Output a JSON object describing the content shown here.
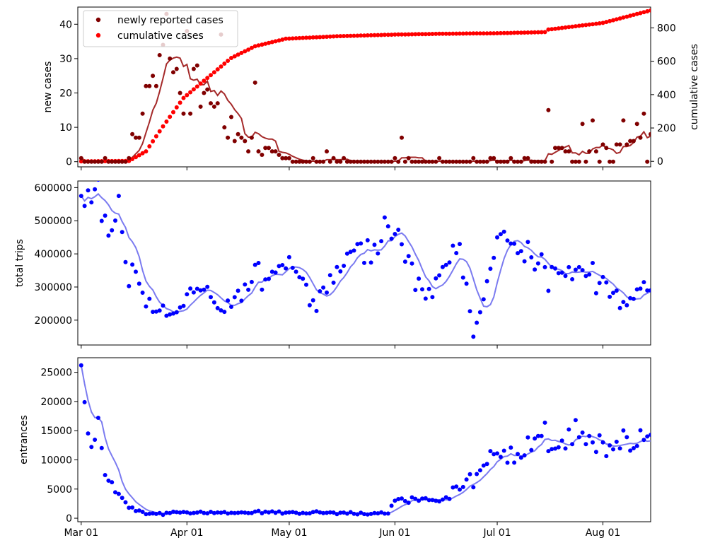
{
  "chart_data": [
    {
      "type": "scatter",
      "panel": "cases",
      "ylabel": "new cases",
      "y2label": "cumulative cases",
      "ylim": [
        -1.5,
        45
      ],
      "y2lim": [
        -33,
        925
      ],
      "yticks": [
        0,
        10,
        20,
        30,
        40
      ],
      "y2ticks": [
        0,
        200,
        400,
        600,
        800
      ],
      "legend_position": "top-left",
      "series": [
        {
          "name": "newly reported cases",
          "color": "#800000",
          "kind": "points"
        },
        {
          "name": "cumulative cases",
          "color": "#ff0000",
          "kind": "points"
        },
        {
          "name": "",
          "color": "#a52a2a",
          "kind": "rolling-line"
        }
      ],
      "new_cases_samples": [
        {
          "x": "2020-03-01",
          "y": 1
        },
        {
          "x": "2020-03-16",
          "y": 8
        },
        {
          "x": "2020-03-19",
          "y": 14
        },
        {
          "x": "2020-03-20",
          "y": 22
        },
        {
          "x": "2020-03-22",
          "y": 25
        },
        {
          "x": "2020-03-24",
          "y": 31
        },
        {
          "x": "2020-03-26",
          "y": 43
        },
        {
          "x": "2020-03-28",
          "y": 26
        },
        {
          "x": "2020-03-31",
          "y": 14
        },
        {
          "x": "2020-04-01",
          "y": 38
        },
        {
          "x": "2020-04-03",
          "y": 27
        },
        {
          "x": "2020-04-06",
          "y": 20
        },
        {
          "x": "2020-04-11",
          "y": 37
        },
        {
          "x": "2020-04-16",
          "y": 8
        },
        {
          "x": "2020-04-21",
          "y": 23
        },
        {
          "x": "2020-05-01",
          "y": 1
        },
        {
          "x": "2020-05-12",
          "y": 3
        },
        {
          "x": "2020-06-03",
          "y": 7
        },
        {
          "x": "2020-07-16",
          "y": 15
        },
        {
          "x": "2020-07-26",
          "y": 11
        },
        {
          "x": "2020-07-29",
          "y": 12
        },
        {
          "x": "2020-08-07",
          "y": 12
        },
        {
          "x": "2020-08-11",
          "y": 11
        },
        {
          "x": "2020-08-13",
          "y": 14
        },
        {
          "x": "2020-08-15",
          "y": 8
        }
      ],
      "cumulative_samples": [
        {
          "x": "2020-03-01",
          "y": 0
        },
        {
          "x": "2020-03-15",
          "y": 2
        },
        {
          "x": "2020-03-20",
          "y": 60
        },
        {
          "x": "2020-03-25",
          "y": 210
        },
        {
          "x": "2020-03-31",
          "y": 380
        },
        {
          "x": "2020-04-07",
          "y": 500
        },
        {
          "x": "2020-04-14",
          "y": 620
        },
        {
          "x": "2020-04-21",
          "y": 690
        },
        {
          "x": "2020-04-30",
          "y": 735
        },
        {
          "x": "2020-05-15",
          "y": 750
        },
        {
          "x": "2020-06-01",
          "y": 760
        },
        {
          "x": "2020-06-15",
          "y": 765
        },
        {
          "x": "2020-07-01",
          "y": 768
        },
        {
          "x": "2020-07-15",
          "y": 775
        },
        {
          "x": "2020-07-16",
          "y": 790
        },
        {
          "x": "2020-08-01",
          "y": 830
        },
        {
          "x": "2020-08-15",
          "y": 905
        }
      ]
    },
    {
      "type": "scatter",
      "panel": "trips",
      "ylabel": "total trips",
      "ylim": [
        125000,
        620000
      ],
      "yticks": [
        200000,
        300000,
        400000,
        500000,
        600000
      ],
      "series": [
        {
          "name": "",
          "color": "#0000ff",
          "kind": "points"
        },
        {
          "name": "",
          "color": "#7b7bf0",
          "kind": "rolling-line"
        }
      ],
      "samples": [
        {
          "x": "2020-03-01",
          "y": 575000
        },
        {
          "x": "2020-03-05",
          "y": 595000
        },
        {
          "x": "2020-03-09",
          "y": 455000
        },
        {
          "x": "2020-03-12",
          "y": 575000
        },
        {
          "x": "2020-03-14",
          "y": 375000
        },
        {
          "x": "2020-03-18",
          "y": 310000
        },
        {
          "x": "2020-03-22",
          "y": 225000
        },
        {
          "x": "2020-03-28",
          "y": 220000
        },
        {
          "x": "2020-04-05",
          "y": 290000
        },
        {
          "x": "2020-04-12",
          "y": 225000
        },
        {
          "x": "2020-04-20",
          "y": 315000
        },
        {
          "x": "2020-05-01",
          "y": 390000
        },
        {
          "x": "2020-05-08",
          "y": 260000
        },
        {
          "x": "2020-05-20",
          "y": 410000
        },
        {
          "x": "2020-06-01",
          "y": 460000
        },
        {
          "x": "2020-06-10",
          "y": 265000
        },
        {
          "x": "2020-06-20",
          "y": 430000
        },
        {
          "x": "2020-06-24",
          "y": 150000
        },
        {
          "x": "2020-07-01",
          "y": 450000
        },
        {
          "x": "2020-07-15",
          "y": 360000
        },
        {
          "x": "2020-08-01",
          "y": 330000
        },
        {
          "x": "2020-08-07",
          "y": 255000
        },
        {
          "x": "2020-08-15",
          "y": 290000
        }
      ]
    },
    {
      "type": "scatter",
      "panel": "entrances",
      "ylabel": "entrances",
      "ylim": [
        -600,
        27500
      ],
      "yticks": [
        0,
        5000,
        10000,
        15000,
        20000,
        25000
      ],
      "series": [
        {
          "name": "",
          "color": "#0000ff",
          "kind": "points"
        },
        {
          "name": "",
          "color": "#7b7bf0",
          "kind": "rolling-line"
        }
      ],
      "samples": [
        {
          "x": "2020-03-01",
          "y": 26200
        },
        {
          "x": "2020-03-04",
          "y": 12200
        },
        {
          "x": "2020-03-06",
          "y": 17200
        },
        {
          "x": "2020-03-08",
          "y": 7400
        },
        {
          "x": "2020-03-15",
          "y": 1800
        },
        {
          "x": "2020-03-20",
          "y": 700
        },
        {
          "x": "2020-04-01",
          "y": 1000
        },
        {
          "x": "2020-05-01",
          "y": 1000
        },
        {
          "x": "2020-05-30",
          "y": 800
        },
        {
          "x": "2020-06-01",
          "y": 3000
        },
        {
          "x": "2020-06-15",
          "y": 3200
        },
        {
          "x": "2020-06-26",
          "y": 8200
        },
        {
          "x": "2020-07-05",
          "y": 12100
        },
        {
          "x": "2020-07-20",
          "y": 13300
        },
        {
          "x": "2020-08-01",
          "y": 13000
        },
        {
          "x": "2020-08-10",
          "y": 12000
        },
        {
          "x": "2020-08-15",
          "y": 14300
        }
      ]
    }
  ],
  "xaxis": {
    "tick_labels": [
      "Mar 01",
      "Apr 01",
      "May 01",
      "Jun 01",
      "Jul 01",
      "Aug 01"
    ],
    "xlim": [
      "2020-02-29",
      "2020-08-15"
    ]
  }
}
